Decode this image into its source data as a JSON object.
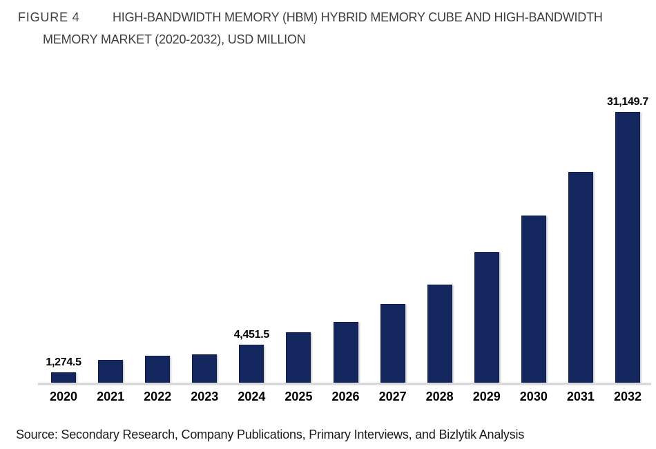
{
  "figure": {
    "label": "FIGURE 4",
    "title_line1": "HIGH-BANDWIDTH MEMORY (HBM) HYBRID MEMORY CUBE AND HIGH-BANDWIDTH",
    "title_line2": "MEMORY MARKET (2020-2032), USD MILLION"
  },
  "source_note": "Source: Secondary Research, Company Publications, Primary Interviews, and Bizlytik Analysis",
  "chart_data": {
    "type": "bar",
    "title": "HIGH-BANDWIDTH MEMORY (HBM) HYBRID MEMORY CUBE AND HIGH-BANDWIDTH MEMORY MARKET (2020-2032), USD MILLION",
    "unit": "USD MILLION",
    "categories": [
      "2020",
      "2021",
      "2022",
      "2023",
      "2024",
      "2025",
      "2026",
      "2027",
      "2028",
      "2029",
      "2030",
      "2031",
      "2032"
    ],
    "values": [
      1274.5,
      2730,
      3210,
      3320,
      4451.5,
      5850,
      7060,
      9090,
      11330,
      15050,
      19270,
      24220,
      31149.7
    ],
    "data_labels": [
      "1,274.5",
      "",
      "",
      "",
      "4,451.5",
      "",
      "",
      "",
      "",
      "",
      "",
      "",
      "31,149.7"
    ],
    "labeled_points": [
      {
        "category": "2020",
        "label": "1,274.5"
      },
      {
        "category": "2024",
        "label": "4,451.5"
      },
      {
        "category": "2032",
        "label": "31,149.7"
      }
    ],
    "ylim": [
      0,
      31149.7
    ],
    "grid": false,
    "legend": false,
    "y_axis_shown": false,
    "bar_color": "#13265e",
    "axis_line_color": "#d8d8d8",
    "label_color": "#000000"
  }
}
